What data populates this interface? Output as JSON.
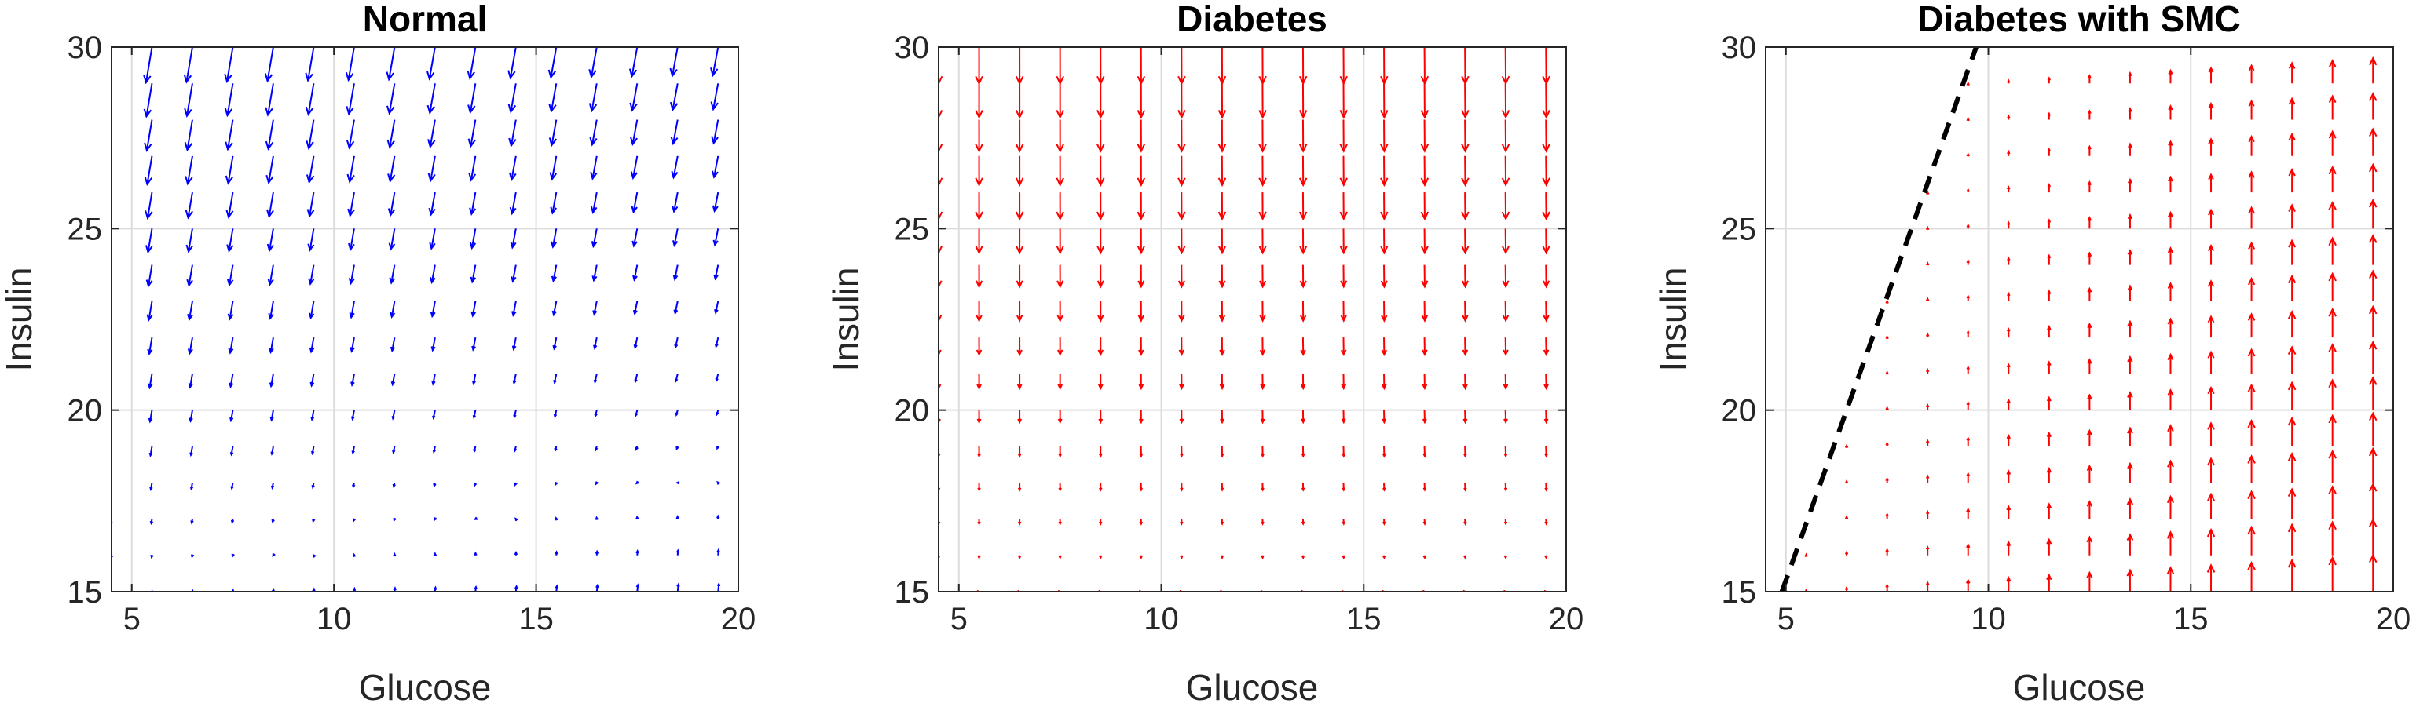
{
  "colors": {
    "normal": "#0000ff",
    "diabetes": "#ff0000",
    "boundary": "#000000"
  },
  "chart_data": [
    {
      "type": "quiver",
      "title": "Normal",
      "xlabel": "Glucose",
      "ylabel": "Insulin",
      "xlim": [
        4.5,
        20
      ],
      "ylim": [
        15,
        30
      ],
      "xticks": [
        5,
        10,
        15,
        20
      ],
      "yticks": [
        15,
        20,
        25,
        30
      ],
      "grid": true,
      "arrow_color": "blue",
      "field": "normal",
      "x_samples": [
        4.5,
        5.5,
        6.5,
        7.5,
        8.5,
        9.5,
        10.5,
        11.5,
        12.5,
        13.5,
        14.5,
        15.5,
        16.5,
        17.5,
        18.5,
        19.5
      ],
      "y_samples": [
        15,
        16,
        17,
        18,
        19,
        20,
        21,
        22,
        23,
        24,
        25,
        26,
        27,
        28,
        29,
        30
      ]
    },
    {
      "type": "quiver",
      "title": "Diabetes",
      "xlabel": "Glucose",
      "ylabel": "Insulin",
      "xlim": [
        4.5,
        20
      ],
      "ylim": [
        15,
        30
      ],
      "xticks": [
        5,
        10,
        15,
        20
      ],
      "yticks": [
        15,
        20,
        25,
        30
      ],
      "grid": true,
      "arrow_color": "red",
      "field": "diabetes",
      "x_samples": [
        4.5,
        5.5,
        6.5,
        7.5,
        8.5,
        9.5,
        10.5,
        11.5,
        12.5,
        13.5,
        14.5,
        15.5,
        16.5,
        17.5,
        18.5,
        19.5
      ],
      "y_samples": [
        15,
        16,
        17,
        18,
        19,
        20,
        21,
        22,
        23,
        24,
        25,
        26,
        27,
        28,
        29,
        30
      ]
    },
    {
      "type": "quiver",
      "title": "Diabetes with SMC",
      "xlabel": "Glucose",
      "ylabel": "Insulin",
      "xlim": [
        4.5,
        20
      ],
      "ylim": [
        15,
        30
      ],
      "xticks": [
        5,
        10,
        15,
        20
      ],
      "yticks": [
        15,
        20,
        25,
        30
      ],
      "grid": true,
      "arrow_color": "red",
      "field": "smc",
      "x_samples": [
        4.5,
        5.5,
        6.5,
        7.5,
        8.5,
        9.5,
        10.5,
        11.5,
        12.5,
        13.5,
        14.5,
        15.5,
        16.5,
        17.5,
        18.5,
        19.5
      ],
      "y_samples": [
        15,
        16,
        17,
        18,
        19,
        20,
        21,
        22,
        23,
        24,
        25,
        26,
        27,
        28,
        29,
        30
      ],
      "boundary_line": {
        "style": "dashed",
        "color": "black",
        "x": [
          4.9,
          9.7
        ],
        "y": [
          15,
          30
        ]
      }
    }
  ]
}
